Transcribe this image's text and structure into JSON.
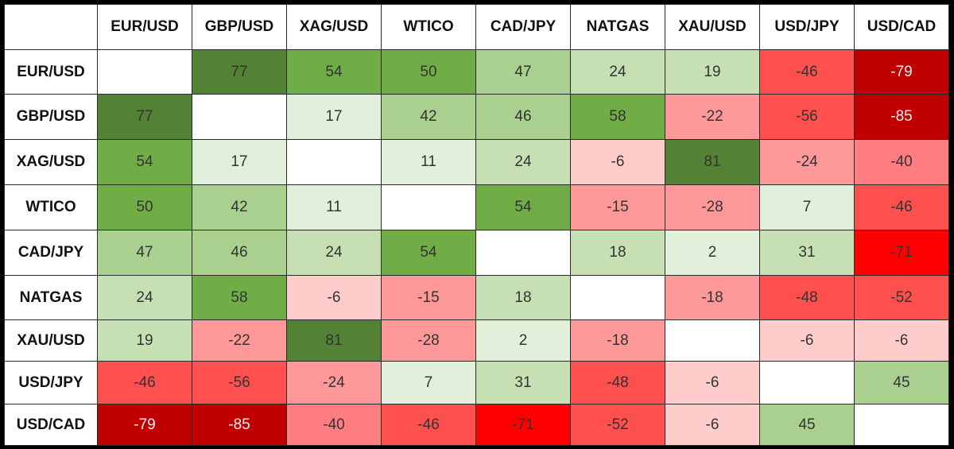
{
  "chart_data": {
    "type": "heatmap",
    "columns": [
      "EUR/USD",
      "GBP/USD",
      "XAG/USD",
      "WTICO",
      "CAD/JPY",
      "NATGAS",
      "XAU/USD",
      "USD/JPY",
      "USD/CAD"
    ],
    "rows": [
      "EUR/USD",
      "GBP/USD",
      "XAG/USD",
      "WTICO",
      "CAD/JPY",
      "NATGAS",
      "XAU/USD",
      "USD/JPY",
      "USD/CAD"
    ],
    "values": [
      [
        null,
        77,
        54,
        50,
        47,
        24,
        19,
        -46,
        -79
      ],
      [
        77,
        null,
        17,
        42,
        46,
        58,
        -22,
        -56,
        -85
      ],
      [
        54,
        17,
        null,
        11,
        24,
        -6,
        81,
        -24,
        -40
      ],
      [
        50,
        42,
        11,
        null,
        54,
        -15,
        -28,
        7,
        -46
      ],
      [
        47,
        46,
        24,
        54,
        null,
        18,
        2,
        31,
        -71
      ],
      [
        24,
        58,
        -6,
        -15,
        18,
        null,
        -18,
        -48,
        -52
      ],
      [
        19,
        -22,
        81,
        -28,
        2,
        -18,
        null,
        -6,
        -6
      ],
      [
        -46,
        -56,
        -24,
        7,
        31,
        -48,
        -6,
        null,
        45
      ],
      [
        -79,
        -85,
        -40,
        -46,
        -71,
        -52,
        -6,
        45,
        null
      ]
    ],
    "colors": {
      "positive_strong": "#548235",
      "positive_mid": "#70ad47",
      "positive_light": "#a9d08e",
      "positive_pale": "#e2efda",
      "negative_strong": "#c00000",
      "negative_bright": "#ff0000",
      "negative_mid": "#ff5050",
      "negative_light": "#ff9999",
      "negative_pale": "#ffcccc",
      "empty": "#ffffff"
    }
  }
}
